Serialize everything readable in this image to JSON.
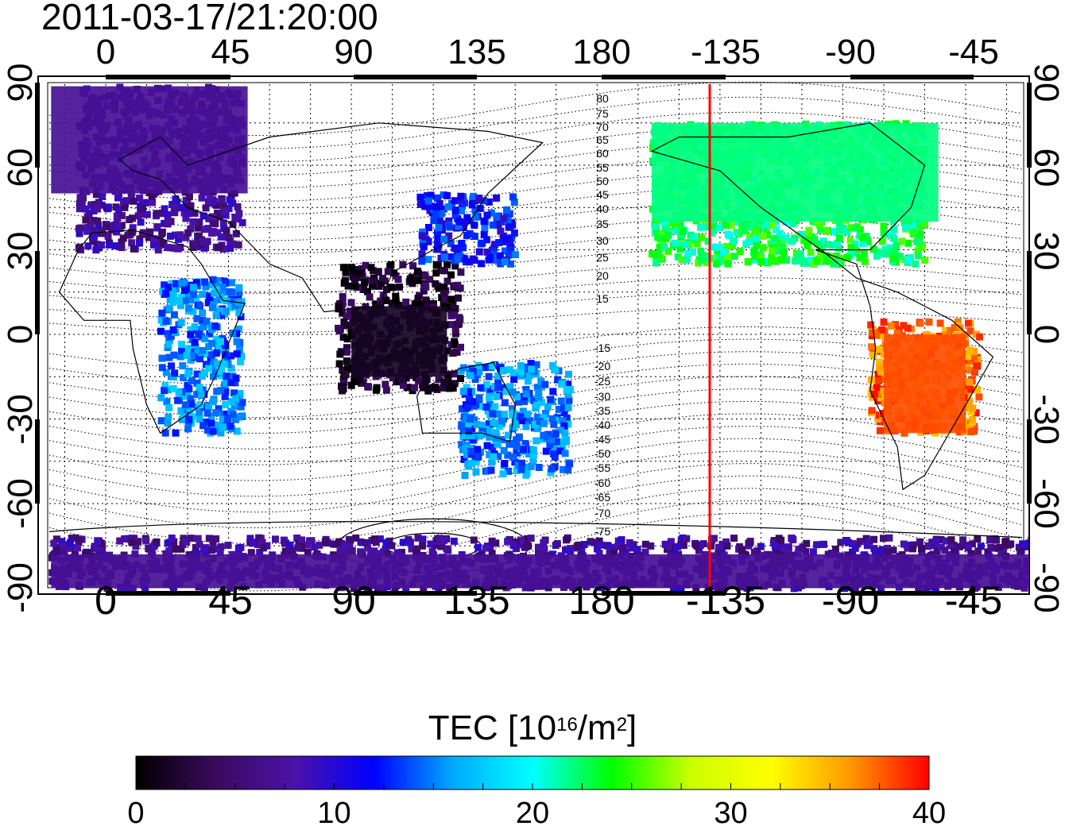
{
  "map": {
    "timestamp": "2011-03-17/21:20:00",
    "projection": "equirectangular",
    "lon_ticks_top": [
      "0",
      "45",
      "90",
      "135",
      "180",
      "-135",
      "-90",
      "-45"
    ],
    "lon_ticks_bottom": [
      "0",
      "45",
      "90",
      "135",
      "180",
      "-135",
      "-90",
      "-45"
    ],
    "lat_ticks_left": [
      "90",
      "60",
      "30",
      "0",
      "-30",
      "-60",
      "-90"
    ],
    "lat_ticks_right": [
      "90",
      "60",
      "30",
      "0",
      "-30",
      "-60",
      "-90"
    ],
    "magnetic_lat_labels": [
      "80",
      "75",
      "70",
      "65",
      "60",
      "55",
      "50",
      "45",
      "40",
      "35",
      "30",
      "25",
      "20",
      "15",
      "-15",
      "-20",
      "-25",
      "-30",
      "-35",
      "-40",
      "-45",
      "-50",
      "-55",
      "-60",
      "-65",
      "-70",
      "-75"
    ],
    "terminator_line_longitude": -140,
    "terminator_color": "#ff0000",
    "grid": "dotted"
  },
  "colorbar": {
    "title_prefix": "TEC  [10",
    "title_sup1": "16",
    "title_mid": "/m",
    "title_sup2": "2",
    "title_suffix": "]",
    "min": 0,
    "max": 40,
    "tick_labels": [
      "0",
      "10",
      "20",
      "30",
      "40"
    ],
    "colormap": [
      "#000000",
      "#3a0a5c",
      "#4b12a8",
      "#0000ff",
      "#00aaff",
      "#00ffff",
      "#00ff00",
      "#ccff00",
      "#ffff00",
      "#ff9900",
      "#ff0000"
    ]
  },
  "chart_data": {
    "type": "heatmap",
    "title": "2011-03-17/21:20:00",
    "xlabel": "",
    "ylabel": "",
    "colorbar_label": "TEC [10^16/m^2]",
    "xlim": [
      -20,
      340
    ],
    "ylim": [
      -90,
      90
    ],
    "regions": [
      {
        "name": "",
        "lon": [
          -10,
          50
        ],
        "lat": [
          30,
          88
        ],
        "tec": 7
      },
      {
        "name": "",
        "lon": [
          20,
          50
        ],
        "lat": [
          -35,
          20
        ],
        "tec": 15
      },
      {
        "name": "",
        "lon": [
          85,
          130
        ],
        "lat": [
          -20,
          25
        ],
        "tec": 2
      },
      {
        "name": "",
        "lon": [
          115,
          150
        ],
        "lat": [
          25,
          50
        ],
        "tec": 12
      },
      {
        "name": "",
        "lon": [
          130,
          170
        ],
        "lat": [
          -50,
          -10
        ],
        "tec": 15
      },
      {
        "name": "",
        "lon": [
          200,
          300
        ],
        "lat": [
          25,
          75
        ],
        "tec": 23
      },
      {
        "name": "",
        "lon": [
          280,
          320
        ],
        "lat": [
          -35,
          5
        ],
        "tec": 37
      },
      {
        "name": "",
        "lon": [
          -20,
          340
        ],
        "lat": [
          -90,
          -72
        ],
        "tec": 7
      }
    ]
  }
}
